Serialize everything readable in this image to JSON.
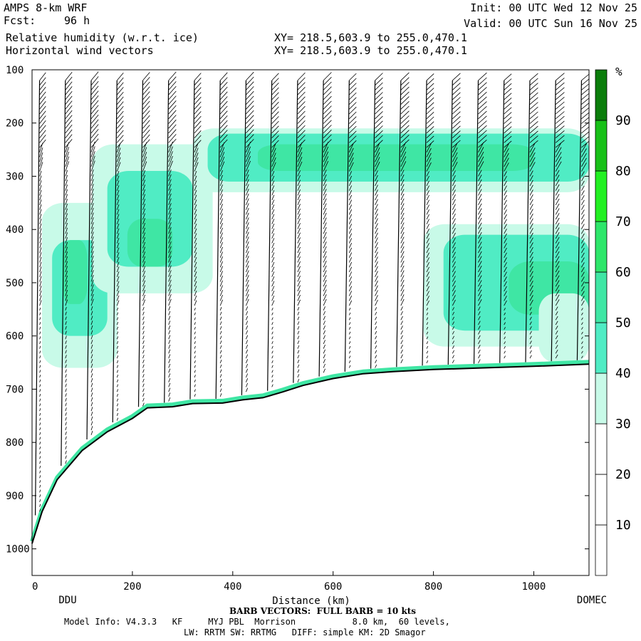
{
  "header": {
    "model": "AMPS 8-km WRF",
    "fcst_label": "Fcst:",
    "fcst_value": "96 h",
    "field1": "Relative humidity (w.r.t. ice)",
    "field2": "Horizontal wind vectors",
    "xy1": "XY= 218.5,603.9 to 255.0,470.1",
    "xy2": "XY= 218.5,603.9 to 255.0,470.1",
    "init": "Init: 00 UTC Wed 12 Nov 25",
    "valid": "Valid: 00 UTC Sun 16 Nov 25"
  },
  "footer": {
    "barb_note": "BARB VECTORS:  FULL BARB = 10 kts",
    "model_info": "Model Info: V4.3.3   KF     MYJ PBL  Morrison           8.0 km,  60 levels,",
    "physics": "LW: RRTM SW: RRTMG   DIFF: simple KM: 2D Smagor"
  },
  "chart_data": {
    "type": "heatmap",
    "xlabel": "Distance (km)",
    "ylabel": "",
    "xlim": [
      0,
      1110
    ],
    "ylim": [
      1050,
      100
    ],
    "x_ticks": [
      0,
      200,
      400,
      600,
      800,
      1000
    ],
    "y_ticks": [
      100,
      200,
      300,
      400,
      500,
      600,
      700,
      800,
      900,
      1000
    ],
    "endpoint_labels": {
      "left": "DDU",
      "right": "DOMEC"
    },
    "colorbar": {
      "unit": "%",
      "levels": [
        0,
        10,
        20,
        30,
        40,
        50,
        60,
        70,
        80,
        90,
        100
      ],
      "tick_labels": [
        "10",
        "20",
        "30",
        "40",
        "50",
        "60",
        "70",
        "80",
        "90"
      ],
      "colors": [
        "#ffffff",
        "#ffffff",
        "#ffffff",
        "#c8fae8",
        "#50ecc4",
        "#3fe6a4",
        "#2ee66a",
        "#22f022",
        "#18c018",
        "#0b7d0b"
      ]
    },
    "terrain_pressure_hpa": [
      [
        0,
        990
      ],
      [
        20,
        930
      ],
      [
        50,
        870
      ],
      [
        100,
        815
      ],
      [
        150,
        780
      ],
      [
        200,
        755
      ],
      [
        230,
        735
      ],
      [
        280,
        733
      ],
      [
        320,
        727
      ],
      [
        380,
        726
      ],
      [
        420,
        720
      ],
      [
        460,
        716
      ],
      [
        500,
        705
      ],
      [
        540,
        693
      ],
      [
        600,
        680
      ],
      [
        660,
        671
      ],
      [
        720,
        667
      ],
      [
        800,
        663
      ],
      [
        900,
        660
      ],
      [
        1000,
        657
      ],
      [
        1110,
        653
      ]
    ],
    "rh_regions": [
      {
        "rh": 35,
        "x": [
          20,
          170
        ],
        "p": [
          350,
          660
        ]
      },
      {
        "rh": 45,
        "x": [
          40,
          150
        ],
        "p": [
          420,
          600
        ]
      },
      {
        "rh": 55,
        "x": [
          60,
          110
        ],
        "p": [
          420,
          540
        ]
      },
      {
        "rh": 35,
        "x": [
          120,
          360
        ],
        "p": [
          240,
          520
        ]
      },
      {
        "rh": 45,
        "x": [
          150,
          320
        ],
        "p": [
          290,
          470
        ]
      },
      {
        "rh": 55,
        "x": [
          190,
          280
        ],
        "p": [
          380,
          470
        ]
      },
      {
        "rh": 35,
        "x": [
          320,
          1110
        ],
        "p": [
          210,
          330
        ]
      },
      {
        "rh": 45,
        "x": [
          350,
          1110
        ],
        "p": [
          220,
          310
        ]
      },
      {
        "rh": 55,
        "x": [
          450,
          1000
        ],
        "p": [
          240,
          290
        ]
      },
      {
        "rh": 35,
        "x": [
          780,
          1110
        ],
        "p": [
          390,
          620
        ]
      },
      {
        "rh": 45,
        "x": [
          820,
          1110
        ],
        "p": [
          410,
          590
        ]
      },
      {
        "rh": 55,
        "x": [
          950,
          1110
        ],
        "p": [
          460,
          560
        ]
      },
      {
        "rh": 35,
        "x": [
          1010,
          1110
        ],
        "p": [
          520,
          650
        ]
      }
    ]
  }
}
